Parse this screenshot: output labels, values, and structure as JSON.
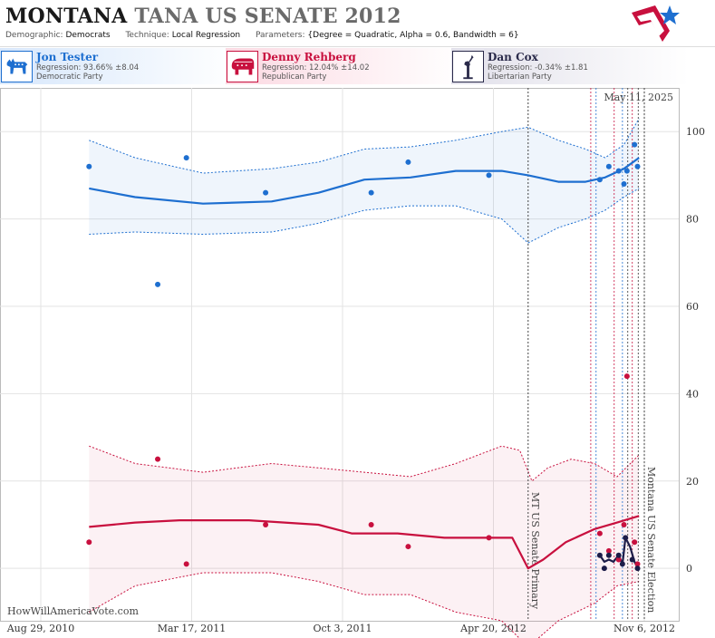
{
  "header": {
    "title_state": "MONTANA",
    "title_rest": "TANA US SENATE 2012",
    "demographic_label": "Demographic:",
    "demographic_value": "Democrats",
    "technique_label": "Technique:",
    "technique_value": "Local Regression",
    "parameters_label": "Parameters:",
    "parameters_value": "{Degree = Quadratic, Alpha = 0.6, Bandwidth = 6}"
  },
  "candidates": [
    {
      "name": "Jon Tester",
      "regression": "Regression: 93.66% ±8.04",
      "party": "Democratic Party",
      "color": "#1e6fd0",
      "icon": "donkey-icon"
    },
    {
      "name": "Denny Rehberg",
      "regression": "Regression: 12.04% ±14.02",
      "party": "Republican Party",
      "color": "#c8103e",
      "icon": "elephant-icon"
    },
    {
      "name": "Dan Cox",
      "regression": "Regression: -0.34% ±1.81",
      "party": "Libertarian Party",
      "color": "#1c1c48",
      "icon": "statue-of-liberty-icon"
    }
  ],
  "chart_data": {
    "type": "line",
    "date_stamp": "May 11, 2025",
    "watermark": "HowWillAmericaVote.com",
    "x_ticks": [
      "Aug 29, 2010",
      "Mar 17, 2011",
      "Oct 3, 2011",
      "Apr 20, 2012",
      "Nov 6, 2012"
    ],
    "x_domain": [
      "2010-08-29",
      "2012-11-06"
    ],
    "y_ticks": [
      0,
      20,
      40,
      60,
      80,
      100
    ],
    "ylim": [
      -12,
      110
    ],
    "grid": true,
    "events": [
      {
        "date": "2012-06-05",
        "label": "MT US Senate Primary"
      },
      {
        "date": "2012-11-06",
        "label": "Montana US Senate Election"
      }
    ],
    "poll_dates": [
      "2012-08-27",
      "2012-09-03",
      "2012-09-27",
      "2012-10-08",
      "2012-10-15",
      "2012-10-21",
      "2012-10-29"
    ],
    "series": [
      {
        "name": "Jon Tester",
        "color": "#1e6fd0",
        "points": [
          [
            "2010-11-01",
            92
          ],
          [
            "2011-01-31",
            65
          ],
          [
            "2011-03-10",
            94
          ],
          [
            "2011-06-23",
            86
          ],
          [
            "2011-11-10",
            86
          ],
          [
            "2011-12-29",
            93
          ],
          [
            "2012-04-14",
            90
          ],
          [
            "2012-09-08",
            89
          ],
          [
            "2012-09-20",
            92
          ],
          [
            "2012-10-03",
            91
          ],
          [
            "2012-10-10",
            88
          ],
          [
            "2012-10-14",
            91
          ],
          [
            "2012-10-24",
            97
          ],
          [
            "2012-10-28",
            92
          ]
        ],
        "fit": [
          [
            "2010-11-01",
            87
          ],
          [
            "2011-01-01",
            85
          ],
          [
            "2011-04-01",
            83.5
          ],
          [
            "2011-07-01",
            84
          ],
          [
            "2011-09-01",
            86
          ],
          [
            "2011-11-01",
            89
          ],
          [
            "2012-01-01",
            89.5
          ],
          [
            "2012-03-01",
            91
          ],
          [
            "2012-05-01",
            91
          ],
          [
            "2012-06-05",
            90
          ],
          [
            "2012-07-15",
            88.5
          ],
          [
            "2012-08-20",
            88.5
          ],
          [
            "2012-09-15",
            89.5
          ],
          [
            "2012-10-10",
            91.5
          ],
          [
            "2012-10-30",
            94
          ]
        ],
        "band_upper": [
          [
            "2010-11-01",
            98
          ],
          [
            "2011-01-01",
            94
          ],
          [
            "2011-04-01",
            90.5
          ],
          [
            "2011-07-01",
            91.5
          ],
          [
            "2011-09-01",
            93
          ],
          [
            "2011-11-01",
            96
          ],
          [
            "2012-01-01",
            96.5
          ],
          [
            "2012-03-01",
            98
          ],
          [
            "2012-05-01",
            100
          ],
          [
            "2012-06-05",
            101
          ],
          [
            "2012-07-15",
            98
          ],
          [
            "2012-08-20",
            96
          ],
          [
            "2012-09-15",
            94
          ],
          [
            "2012-10-10",
            97
          ],
          [
            "2012-10-30",
            103
          ]
        ],
        "band_lower": [
          [
            "2010-11-01",
            76.5
          ],
          [
            "2011-01-01",
            77
          ],
          [
            "2011-04-01",
            76.5
          ],
          [
            "2011-07-01",
            77
          ],
          [
            "2011-09-01",
            79
          ],
          [
            "2011-11-01",
            82
          ],
          [
            "2012-01-01",
            83
          ],
          [
            "2012-03-01",
            83
          ],
          [
            "2012-05-01",
            80
          ],
          [
            "2012-06-05",
            74.5
          ],
          [
            "2012-07-15",
            78
          ],
          [
            "2012-08-20",
            80
          ],
          [
            "2012-09-15",
            82
          ],
          [
            "2012-10-10",
            85
          ],
          [
            "2012-10-30",
            87
          ]
        ]
      },
      {
        "name": "Denny Rehberg",
        "color": "#c8103e",
        "points": [
          [
            "2010-11-01",
            6
          ],
          [
            "2011-01-31",
            25
          ],
          [
            "2011-03-10",
            1
          ],
          [
            "2011-06-23",
            10
          ],
          [
            "2011-11-10",
            10
          ],
          [
            "2011-12-29",
            5
          ],
          [
            "2012-04-14",
            7
          ],
          [
            "2012-09-08",
            8
          ],
          [
            "2012-09-20",
            4
          ],
          [
            "2012-10-03",
            2
          ],
          [
            "2012-10-10",
            10
          ],
          [
            "2012-10-14",
            44
          ],
          [
            "2012-10-24",
            6
          ],
          [
            "2012-10-28",
            1
          ]
        ],
        "fit": [
          [
            "2010-11-01",
            9.5
          ],
          [
            "2011-01-01",
            10.5
          ],
          [
            "2011-03-01",
            11
          ],
          [
            "2011-06-01",
            11
          ],
          [
            "2011-09-01",
            10
          ],
          [
            "2011-10-15",
            8
          ],
          [
            "2011-12-15",
            8
          ],
          [
            "2012-02-15",
            7
          ],
          [
            "2012-04-01",
            7
          ],
          [
            "2012-05-15",
            7
          ],
          [
            "2012-06-05",
            0
          ],
          [
            "2012-06-25",
            2
          ],
          [
            "2012-07-25",
            6
          ],
          [
            "2012-09-01",
            9
          ],
          [
            "2012-10-01",
            10.5
          ],
          [
            "2012-10-30",
            12
          ]
        ],
        "band_upper": [
          [
            "2010-11-01",
            28
          ],
          [
            "2011-01-01",
            24
          ],
          [
            "2011-04-01",
            22
          ],
          [
            "2011-07-01",
            24
          ],
          [
            "2011-09-01",
            23
          ],
          [
            "2011-11-01",
            22
          ],
          [
            "2012-01-01",
            21
          ],
          [
            "2012-03-01",
            24
          ],
          [
            "2012-05-01",
            28
          ],
          [
            "2012-05-25",
            27
          ],
          [
            "2012-06-10",
            20
          ],
          [
            "2012-07-01",
            23
          ],
          [
            "2012-08-01",
            25
          ],
          [
            "2012-09-01",
            24
          ],
          [
            "2012-10-01",
            21
          ],
          [
            "2012-10-30",
            26
          ]
        ],
        "band_lower": [
          [
            "2010-11-01",
            -10
          ],
          [
            "2011-01-01",
            -4
          ],
          [
            "2011-04-01",
            -1
          ],
          [
            "2011-07-01",
            -1
          ],
          [
            "2011-09-01",
            -3
          ],
          [
            "2011-11-01",
            -6
          ],
          [
            "2012-01-01",
            -6
          ],
          [
            "2012-03-01",
            -10
          ],
          [
            "2012-05-01",
            -12
          ],
          [
            "2012-06-05",
            -18
          ],
          [
            "2012-07-15",
            -12
          ],
          [
            "2012-09-01",
            -8
          ],
          [
            "2012-10-01",
            -4
          ],
          [
            "2012-10-30",
            -3
          ]
        ]
      },
      {
        "name": "Dan Cox",
        "color": "#1c1c48",
        "points": [
          [
            "2012-09-08",
            3
          ],
          [
            "2012-09-14",
            0
          ],
          [
            "2012-09-20",
            3
          ],
          [
            "2012-10-03",
            3
          ],
          [
            "2012-10-08",
            1
          ],
          [
            "2012-10-12",
            7
          ],
          [
            "2012-10-21",
            2
          ],
          [
            "2012-10-28",
            0
          ]
        ],
        "fit": [
          [
            "2012-09-08",
            3
          ],
          [
            "2012-09-14",
            1.5
          ],
          [
            "2012-09-20",
            2
          ],
          [
            "2012-09-26",
            1.5
          ],
          [
            "2012-10-03",
            3
          ],
          [
            "2012-10-08",
            1
          ],
          [
            "2012-10-12",
            7
          ],
          [
            "2012-10-18",
            5
          ],
          [
            "2012-10-24",
            1.5
          ],
          [
            "2012-10-30",
            -0.5
          ]
        ]
      }
    ]
  }
}
